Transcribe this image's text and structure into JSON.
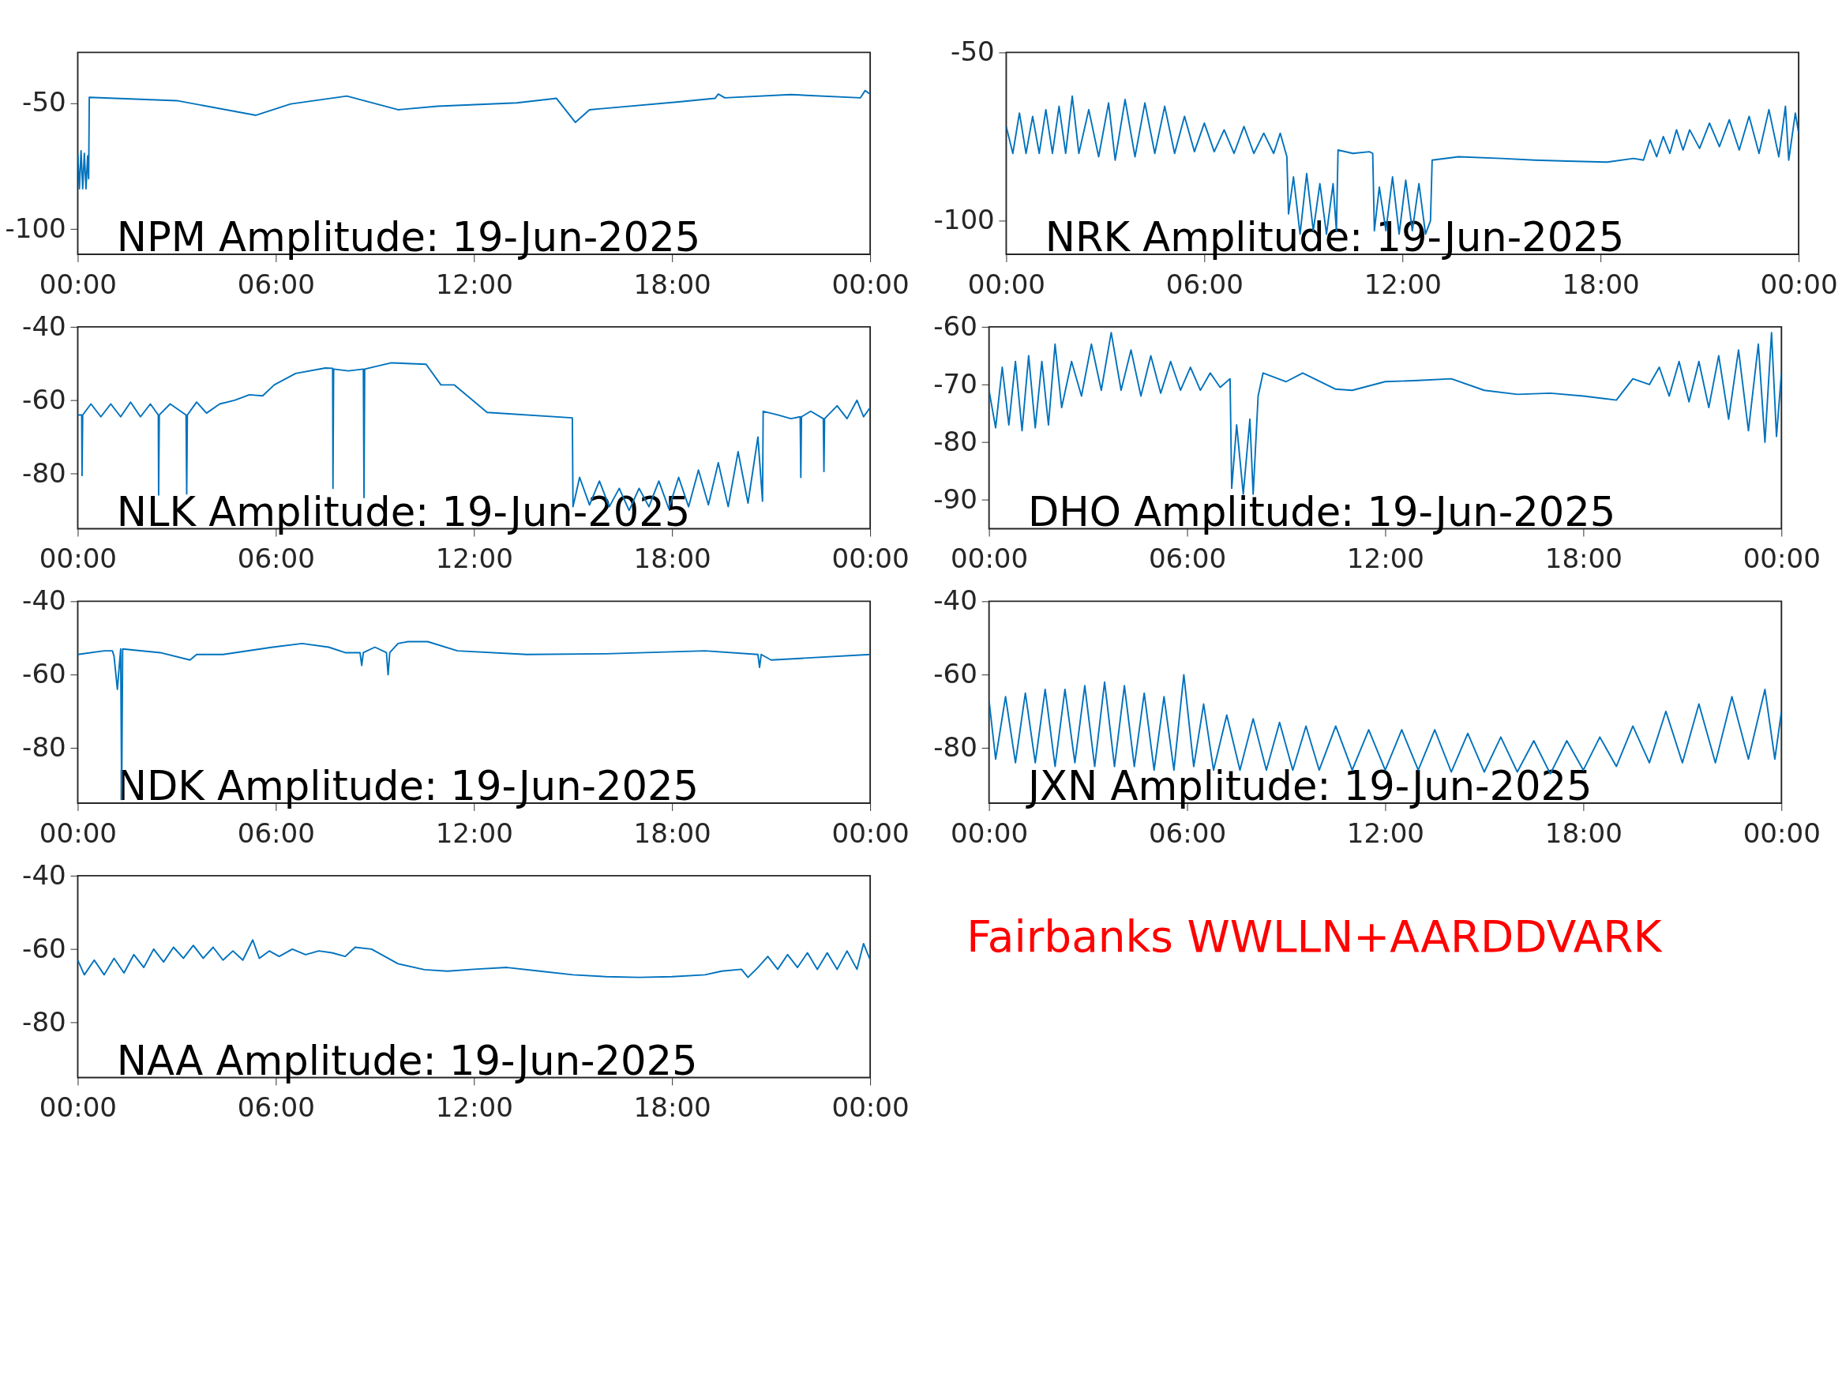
{
  "chart_data": [
    {
      "type": "line",
      "title": "NPM Amplitude: 19-Jun-2025",
      "color": "#0072bd",
      "xlim": [
        0,
        24
      ],
      "ylim": [
        -110,
        -30
      ],
      "yticks": [
        -100,
        -50
      ],
      "xticks": [
        {
          "value": 0,
          "label": "00:00"
        },
        {
          "value": 6,
          "label": "06:00"
        },
        {
          "value": 12,
          "label": "12:00"
        },
        {
          "value": 18,
          "label": "18:00"
        },
        {
          "value": 24,
          "label": "00:00"
        }
      ],
      "x": [
        0,
        0.05,
        0.1,
        0.15,
        0.2,
        0.25,
        0.3,
        0.33,
        0.35,
        3,
        5.4,
        6.45,
        8.15,
        9.7,
        10.9,
        13.3,
        14.5,
        15.07,
        15.5,
        18.2,
        19.3,
        19.4,
        19.6,
        21.6,
        23.7,
        23.85,
        24
      ],
      "values": [
        -70,
        -84,
        -69,
        -84,
        -70,
        -84,
        -71,
        -80,
        -47.8,
        -49.1,
        -54.9,
        -50.4,
        -47.3,
        -52.7,
        -51.3,
        -50,
        -48.2,
        -57.7,
        -52.7,
        -49.6,
        -48.2,
        -46.5,
        -48,
        -46.7,
        -48,
        -45.1,
        -46.5
      ]
    },
    {
      "type": "line",
      "title": "NRK Amplitude: 19-Jun-2025",
      "color": "#0072bd",
      "xlim": [
        0,
        24
      ],
      "ylim": [
        -110,
        -50
      ],
      "yticks": [
        -100,
        -50
      ],
      "xticks": [
        {
          "value": 0,
          "label": "00:00"
        },
        {
          "value": 6,
          "label": "06:00"
        },
        {
          "value": 12,
          "label": "12:00"
        },
        {
          "value": 18,
          "label": "18:00"
        },
        {
          "value": 24,
          "label": "00:00"
        }
      ],
      "x": [
        0,
        0.2,
        0.4,
        0.6,
        0.8,
        1.0,
        1.2,
        1.4,
        1.6,
        1.8,
        2.0,
        2.2,
        2.5,
        2.8,
        3.1,
        3.3,
        3.6,
        3.9,
        4.2,
        4.5,
        4.8,
        5.1,
        5.4,
        5.7,
        6.0,
        6.3,
        6.6,
        6.9,
        7.2,
        7.5,
        7.8,
        8.1,
        8.3,
        8.5,
        8.55,
        8.7,
        8.9,
        9.1,
        9.3,
        9.5,
        9.7,
        9.9,
        10.0,
        10.05,
        10.5,
        11.0,
        11.1,
        11.15,
        11.3,
        11.5,
        11.7,
        11.9,
        12.1,
        12.3,
        12.5,
        12.7,
        12.85,
        12.9,
        13.7,
        15,
        16,
        17,
        18.2,
        19.0,
        19.3,
        19.5,
        19.7,
        19.9,
        20.1,
        20.3,
        20.5,
        20.7,
        21.0,
        21.3,
        21.6,
        21.9,
        22.2,
        22.5,
        22.8,
        23.1,
        23.4,
        23.6,
        23.7,
        23.9,
        24
      ],
      "values": [
        -72,
        -80,
        -68,
        -80,
        -69,
        -80,
        -67,
        -80,
        -66,
        -80,
        -63,
        -80,
        -67,
        -81,
        -65,
        -82,
        -64,
        -81,
        -65,
        -80,
        -66,
        -80,
        -69,
        -79.5,
        -71,
        -79.5,
        -73,
        -80,
        -72,
        -80,
        -74,
        -80,
        -74,
        -81,
        -98,
        -87,
        -104,
        -86,
        -103,
        -89,
        -104,
        -89,
        -103,
        -79,
        -80,
        -79.5,
        -80,
        -103,
        -90,
        -103,
        -87,
        -104,
        -88,
        -103,
        -89,
        -104,
        -100,
        -82,
        -81,
        -81.5,
        -82,
        -82.3,
        -82.6,
        -81.5,
        -82,
        -76,
        -81,
        -75,
        -80,
        -73,
        -79,
        -73,
        -78.5,
        -71,
        -78,
        -70,
        -79,
        -69,
        -80,
        -67,
        -81,
        -66,
        -82,
        -68,
        -74
      ]
    },
    {
      "type": "line",
      "title": "NLK Amplitude: 19-Jun-2025",
      "color": "#0072bd",
      "xlim": [
        0,
        24
      ],
      "ylim": [
        -95,
        -40
      ],
      "yticks": [
        -80,
        -60,
        -40
      ],
      "xticks": [
        {
          "value": 0,
          "label": "00:00"
        },
        {
          "value": 6,
          "label": "06:00"
        },
        {
          "value": 12,
          "label": "12:00"
        },
        {
          "value": 18,
          "label": "18:00"
        },
        {
          "value": 24,
          "label": "00:00"
        }
      ],
      "x": [
        0,
        0.12,
        0.13,
        0.15,
        0.4,
        0.7,
        1.0,
        1.3,
        1.6,
        1.9,
        2.2,
        2.44,
        2.45,
        2.47,
        2.8,
        3.28,
        3.3,
        3.32,
        3.6,
        3.9,
        4.3,
        4.75,
        5.2,
        5.6,
        5.95,
        6.6,
        7.5,
        7.72,
        7.73,
        7.75,
        8.2,
        8.65,
        8.67,
        8.69,
        9.5,
        10.55,
        11.0,
        11.4,
        12.4,
        14.98,
        15.0,
        15.2,
        15.5,
        15.8,
        16.1,
        16.4,
        16.7,
        17.0,
        17.3,
        17.6,
        17.9,
        18.2,
        18.5,
        18.8,
        19.1,
        19.4,
        19.7,
        20.0,
        20.3,
        20.6,
        20.74,
        20.76,
        21.2,
        21.6,
        21.88,
        21.9,
        21.92,
        22.2,
        22.58,
        22.6,
        22.62,
        23.0,
        23.3,
        23.6,
        23.8,
        24
      ],
      "values": [
        -64,
        -64,
        -80.5,
        -64,
        -61,
        -64.5,
        -61,
        -64.5,
        -60.5,
        -64.5,
        -61,
        -64,
        -85.8,
        -64,
        -61,
        -64,
        -85.5,
        -64,
        -60.5,
        -63.5,
        -61,
        -60,
        -58.5,
        -58.8,
        -55.8,
        -52.7,
        -51.2,
        -51.3,
        -84,
        -51.5,
        -52,
        -51.5,
        -86.5,
        -51.5,
        -49.8,
        -50.2,
        -55.8,
        -55.8,
        -63.3,
        -64.8,
        -89,
        -81,
        -88.5,
        -82,
        -89,
        -84,
        -90,
        -84,
        -89,
        -82,
        -89.5,
        -81,
        -89,
        -79,
        -88.5,
        -77,
        -89,
        -74,
        -88,
        -70,
        -87.5,
        -63,
        -64,
        -65,
        -64.5,
        -81,
        -64.5,
        -63,
        -65,
        -79.4,
        -65,
        -61.5,
        -65,
        -60,
        -64.5,
        -62
      ]
    },
    {
      "type": "line",
      "title": "DHO Amplitude: 19-Jun-2025",
      "color": "#0072bd",
      "xlim": [
        0,
        24
      ],
      "ylim": [
        -95,
        -60
      ],
      "yticks": [
        -90,
        -80,
        -70,
        -60
      ],
      "xticks": [
        {
          "value": 0,
          "label": "00:00"
        },
        {
          "value": 6,
          "label": "06:00"
        },
        {
          "value": 12,
          "label": "12:00"
        },
        {
          "value": 18,
          "label": "18:00"
        },
        {
          "value": 24,
          "label": "00:00"
        }
      ],
      "x": [
        0,
        0.2,
        0.4,
        0.6,
        0.8,
        1.0,
        1.2,
        1.4,
        1.6,
        1.8,
        2.0,
        2.2,
        2.5,
        2.8,
        3.1,
        3.4,
        3.7,
        4.0,
        4.3,
        4.6,
        4.9,
        5.2,
        5.5,
        5.8,
        6.1,
        6.4,
        6.7,
        7.0,
        7.3,
        7.35,
        7.5,
        7.7,
        7.9,
        8.0,
        8.15,
        8.3,
        9.0,
        9.5,
        10.5,
        11,
        12,
        13,
        14,
        15,
        16,
        17,
        18,
        19,
        19.5,
        20,
        20.3,
        20.6,
        20.9,
        21.2,
        21.5,
        21.8,
        22.1,
        22.4,
        22.7,
        23.0,
        23.3,
        23.5,
        23.7,
        23.85,
        24
      ],
      "values": [
        -71,
        -77.5,
        -67,
        -77,
        -66,
        -78,
        -65,
        -77.5,
        -66,
        -77,
        -63,
        -74,
        -66,
        -72,
        -63,
        -71,
        -61,
        -71,
        -64,
        -72,
        -65,
        -71.5,
        -66,
        -71,
        -67,
        -71,
        -68,
        -70.5,
        -69,
        -88,
        -77,
        -89,
        -76,
        -89,
        -72,
        -68,
        -69.5,
        -68,
        -70.8,
        -71,
        -69.5,
        -69.3,
        -69,
        -71,
        -71.7,
        -71.5,
        -72,
        -72.7,
        -69,
        -70,
        -67,
        -72,
        -66,
        -73,
        -66,
        -74,
        -65,
        -76,
        -64,
        -78,
        -63,
        -80,
        -61,
        -79,
        -68
      ]
    },
    {
      "type": "line",
      "title": "NDK Amplitude: 19-Jun-2025",
      "color": "#0072bd",
      "xlim": [
        0,
        24
      ],
      "ylim": [
        -95,
        -40
      ],
      "yticks": [
        -80,
        -60,
        -40
      ],
      "xticks": [
        {
          "value": 0,
          "label": "00:00"
        },
        {
          "value": 6,
          "label": "06:00"
        },
        {
          "value": 12,
          "label": "12:00"
        },
        {
          "value": 18,
          "label": "18:00"
        },
        {
          "value": 24,
          "label": "00:00"
        }
      ],
      "x": [
        0,
        0.8,
        1.05,
        1.1,
        1.2,
        1.3,
        1.33,
        1.36,
        2.5,
        3.4,
        3.6,
        4.4,
        5.9,
        6.8,
        7.6,
        8.1,
        8.55,
        8.6,
        8.65,
        9.0,
        9.35,
        9.4,
        9.45,
        9.7,
        10.0,
        10.6,
        11.5,
        13.6,
        16,
        19,
        20.6,
        20.65,
        20.7,
        21.0,
        22,
        24
      ],
      "values": [
        -54.5,
        -53.5,
        -53.5,
        -55,
        -64,
        -53,
        -94,
        -53,
        -54,
        -56,
        -54.5,
        -54.5,
        -52.5,
        -51.5,
        -52.5,
        -54,
        -54,
        -57.5,
        -54,
        -52.5,
        -54,
        -60,
        -54,
        -51.5,
        -51,
        -51,
        -53.5,
        -54.5,
        -54.3,
        -53.5,
        -54.5,
        -58,
        -54.5,
        -56,
        -55.5,
        -54.5
      ]
    },
    {
      "type": "line",
      "title": "JXN Amplitude: 19-Jun-2025",
      "color": "#0072bd",
      "xlim": [
        0,
        24
      ],
      "ylim": [
        -95,
        -40
      ],
      "yticks": [
        -80,
        -60,
        -40
      ],
      "xticks": [
        {
          "value": 0,
          "label": "00:00"
        },
        {
          "value": 6,
          "label": "06:00"
        },
        {
          "value": 12,
          "label": "12:00"
        },
        {
          "value": 18,
          "label": "18:00"
        },
        {
          "value": 24,
          "label": "00:00"
        }
      ],
      "x": [
        0,
        0.2,
        0.5,
        0.8,
        1.1,
        1.4,
        1.7,
        2.0,
        2.3,
        2.6,
        2.9,
        3.2,
        3.5,
        3.8,
        4.1,
        4.4,
        4.7,
        5.0,
        5.3,
        5.6,
        5.9,
        6.2,
        6.5,
        6.8,
        7.2,
        7.6,
        8.0,
        8.4,
        8.8,
        9.2,
        9.6,
        10.0,
        10.5,
        11.0,
        11.5,
        12.0,
        12.5,
        13.0,
        13.5,
        14.0,
        14.5,
        15.0,
        15.5,
        16.0,
        16.5,
        17.0,
        17.5,
        18.0,
        18.5,
        19.0,
        19.5,
        20.0,
        20.5,
        21.0,
        21.5,
        22.0,
        22.5,
        23.0,
        23.5,
        23.8,
        24
      ],
      "values": [
        -67,
        -83,
        -66,
        -84,
        -65,
        -84,
        -64,
        -85,
        -64,
        -84,
        -63,
        -85,
        -62,
        -85,
        -63,
        -85,
        -65,
        -86,
        -66,
        -86,
        -60,
        -85,
        -68,
        -86,
        -71,
        -86,
        -72,
        -86,
        -73,
        -86,
        -74,
        -86,
        -74,
        -86,
        -75,
        -86,
        -75,
        -86,
        -75,
        -86.5,
        -76,
        -86.5,
        -77,
        -86.5,
        -78,
        -87,
        -78,
        -86,
        -77,
        -85,
        -74,
        -84,
        -70,
        -84,
        -68,
        -84,
        -66,
        -83,
        -64,
        -83,
        -70
      ]
    },
    {
      "type": "line",
      "title": "NAA Amplitude: 19-Jun-2025",
      "color": "#0072bd",
      "xlim": [
        0,
        24
      ],
      "ylim": [
        -95,
        -40
      ],
      "yticks": [
        -80,
        -60,
        -40
      ],
      "xticks": [
        {
          "value": 0,
          "label": "00:00"
        },
        {
          "value": 6,
          "label": "06:00"
        },
        {
          "value": 12,
          "label": "12:00"
        },
        {
          "value": 18,
          "label": "18:00"
        },
        {
          "value": 24,
          "label": "00:00"
        }
      ],
      "x": [
        0,
        0.2,
        0.5,
        0.8,
        1.1,
        1.4,
        1.7,
        2.0,
        2.3,
        2.6,
        2.9,
        3.2,
        3.5,
        3.8,
        4.1,
        4.4,
        4.7,
        5.0,
        5.3,
        5.5,
        5.8,
        6.1,
        6.5,
        6.9,
        7.3,
        7.7,
        8.1,
        8.4,
        8.9,
        9.7,
        10.5,
        11.2,
        12,
        13,
        14,
        15,
        16,
        17,
        18,
        19,
        19.5,
        20.1,
        20.3,
        20.6,
        20.9,
        21.2,
        21.5,
        21.8,
        22.1,
        22.4,
        22.7,
        23.0,
        23.3,
        23.6,
        23.8,
        24
      ],
      "values": [
        -63,
        -67,
        -63,
        -67,
        -62.5,
        -66.5,
        -61.5,
        -65,
        -60,
        -63.5,
        -59.5,
        -62.5,
        -59,
        -62.5,
        -59.5,
        -63,
        -60.5,
        -63,
        -57.5,
        -62.5,
        -60.5,
        -62,
        -60,
        -61.5,
        -60.5,
        -61,
        -62,
        -59.5,
        -60,
        -64,
        -65.6,
        -66,
        -65.5,
        -65,
        -66,
        -67,
        -67.5,
        -67.7,
        -67.5,
        -67,
        -66,
        -65.5,
        -67.7,
        -65,
        -62,
        -65.5,
        -61.5,
        -65,
        -61,
        -65.5,
        -61,
        -65.5,
        -60.5,
        -65.5,
        -58.5,
        -63
      ]
    },
    {
      "type": "other",
      "annotations": [
        "Fairbanks WWLLN+AARDDVARK"
      ],
      "color": "#ff0000"
    }
  ]
}
